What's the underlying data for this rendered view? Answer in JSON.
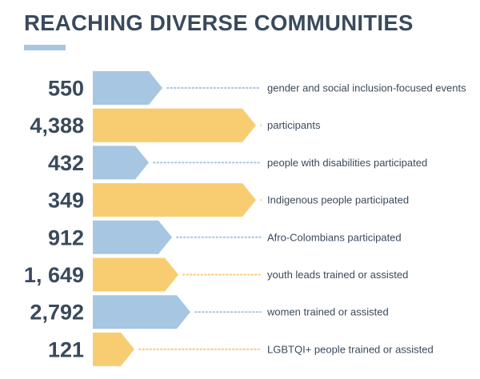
{
  "title": "REACHING DIVERSE COMMUNITIES",
  "colors": {
    "blue": "#a6c6e2",
    "yellow": "#f8cd72",
    "text": "#3a4a5c",
    "title_underline": "#a6c6e2"
  },
  "chart_data": {
    "type": "bar",
    "orientation": "horizontal",
    "title": "REACHING DIVERSE COMMUNITIES",
    "value_labels": [
      "550",
      "4,388",
      "432",
      "349",
      "912",
      "1, 649",
      "2,792",
      "121"
    ],
    "categories": [
      "gender and social inclusion-focused events",
      "participants",
      "people with disabilities participated",
      "Indigenous people participated",
      "Afro-Colombians participated",
      "youth leads trained or assisted",
      "women trained or assisted",
      "LGBTQI+ people trained or assisted"
    ],
    "values": [
      550,
      4388,
      432,
      349,
      912,
      1649,
      2792,
      121
    ],
    "bar_colors": [
      "blue",
      "yellow",
      "blue",
      "yellow",
      "blue",
      "yellow",
      "blue",
      "yellow"
    ],
    "bar_shape": "arrow",
    "connector_style": "dotted"
  }
}
